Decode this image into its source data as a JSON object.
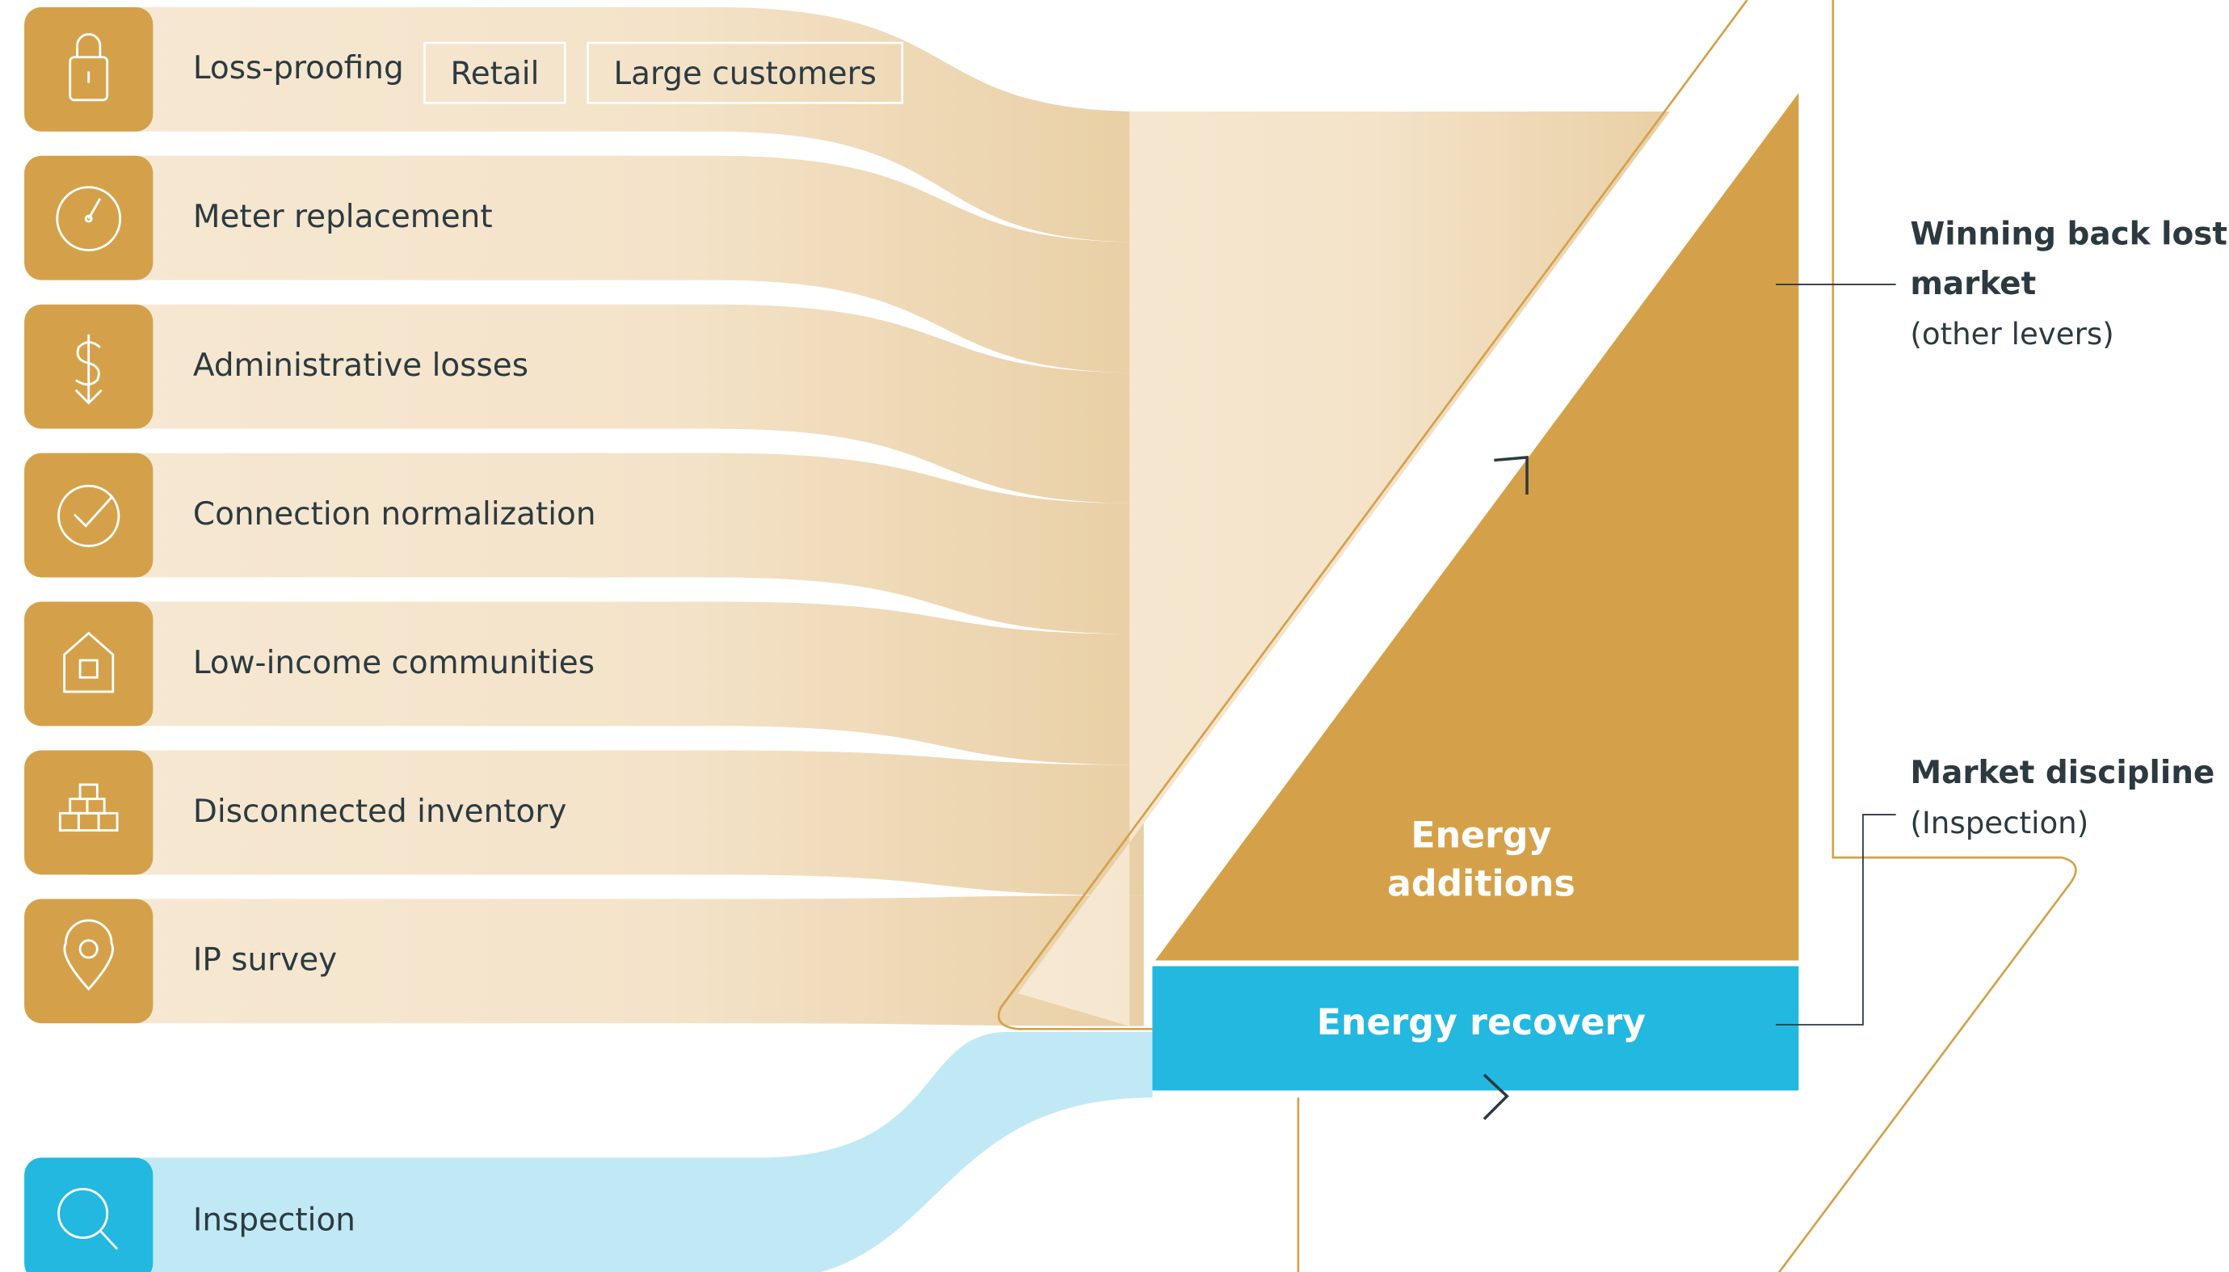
{
  "levers": [
    {
      "label": "Loss-proofing",
      "tags": [
        "Retail",
        "Large customers"
      ]
    },
    {
      "label": "Meter replacement"
    },
    {
      "label": "Administrative losses"
    },
    {
      "label": "Connection normalization"
    },
    {
      "label": "Low-income communities"
    },
    {
      "label": "Disconnected inventory"
    },
    {
      "label": "IP survey"
    }
  ],
  "inspection": {
    "label": "Inspection"
  },
  "blocks": {
    "additions": [
      "Energy",
      "additions"
    ],
    "recovery": "Energy recovery"
  },
  "outcomes": [
    {
      "title": [
        "Winning back lost",
        "market"
      ],
      "note": "(other levers)"
    },
    {
      "title": [
        "Market discipline"
      ],
      "note": "(Inspection)"
    }
  ]
}
